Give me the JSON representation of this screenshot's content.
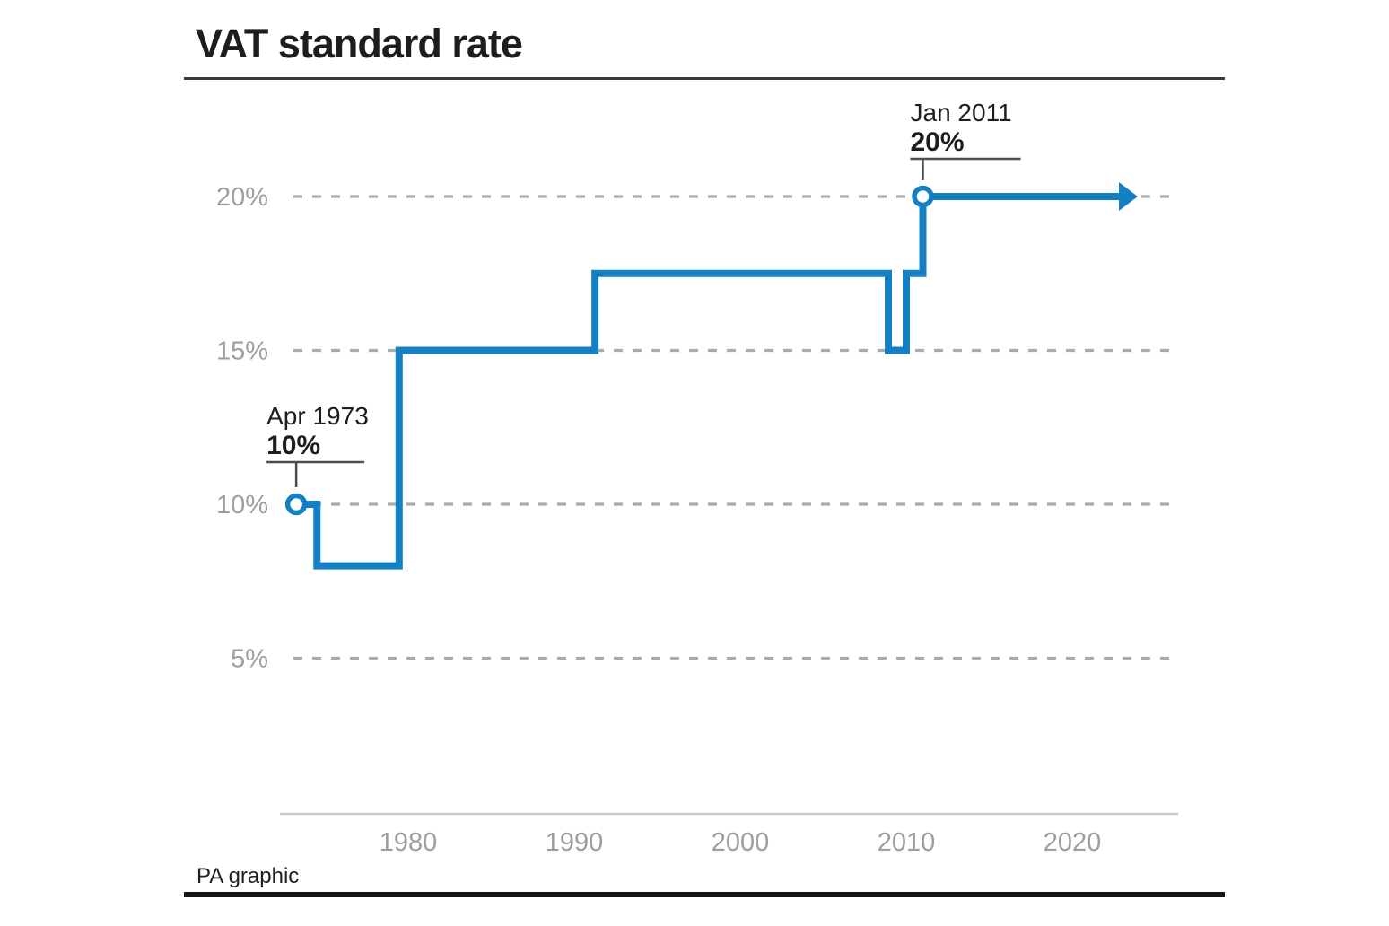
{
  "header": {
    "title": "VAT standard rate"
  },
  "footer": {
    "credit": "PA graphic"
  },
  "chart_data": {
    "type": "line",
    "style": "step-after",
    "title": "VAT standard rate",
    "x_unit": "year",
    "y_unit": "percent",
    "grid": "horizontal-dashed",
    "xlim": [
      1972,
      2025
    ],
    "ylim": [
      0,
      22
    ],
    "x_ticks": [
      {
        "label": "1980",
        "year": 1980
      },
      {
        "label": "1990",
        "year": 1990
      },
      {
        "label": "2000",
        "year": 2000
      },
      {
        "label": "2010",
        "year": 2010
      },
      {
        "label": "2020",
        "year": 2020
      }
    ],
    "y_ticks": [
      {
        "label": "20%",
        "value": 20
      },
      {
        "label": "15%",
        "value": 15
      },
      {
        "label": "10%",
        "value": 10
      },
      {
        "label": "5%",
        "value": 5
      }
    ],
    "series": [
      {
        "name": "VAT standard rate",
        "points": [
          {
            "date": "Apr 1973",
            "year": 1973.25,
            "rate": 10
          },
          {
            "date": "Jul 1974",
            "year": 1974.5,
            "rate": 8
          },
          {
            "date": "Jun 1979",
            "year": 1979.45,
            "rate": 15
          },
          {
            "date": "Apr 1991",
            "year": 1991.25,
            "rate": 17.5
          },
          {
            "date": "Dec 2008",
            "year": 2008.92,
            "rate": 15
          },
          {
            "date": "Jan 2010",
            "year": 2010.0,
            "rate": 17.5
          },
          {
            "date": "Jan 2011",
            "year": 2011.0,
            "rate": 20
          }
        ],
        "continues_with_arrow": true
      }
    ],
    "markers": [
      {
        "year": 1973.25,
        "rate": 10,
        "style": "open-circle"
      },
      {
        "year": 2011.0,
        "rate": 20,
        "style": "open-circle"
      }
    ],
    "annotations": [
      {
        "label": "Apr 1973",
        "value_label": "10%",
        "year": 1973.25,
        "rate": 10
      },
      {
        "label": "Jan 2011",
        "value_label": "20%",
        "year": 2011.0,
        "rate": 20
      }
    ],
    "colors": {
      "line": "#1480c3",
      "grid": "#ababab",
      "axis_line": "#c9c9c9",
      "axis_text": "#9e9e9e",
      "annotation_text": "#1d1d1d",
      "annotation_rule": "#4d4d4d"
    }
  }
}
